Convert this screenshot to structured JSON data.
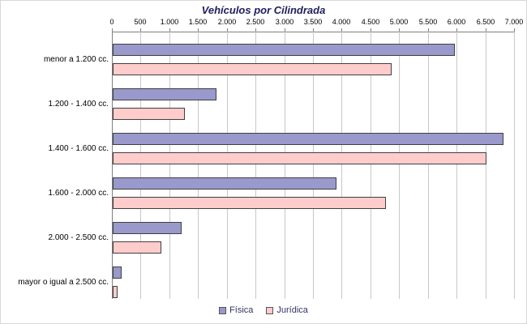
{
  "colors": {
    "title": "#202060",
    "axis": "#808080",
    "grid": "#c8c8c8",
    "barBorder": "#404040",
    "legendText": "#333366"
  },
  "chart_data": {
    "type": "bar",
    "orientation": "horizontal",
    "title": "Vehículos por Cilindrada",
    "categories": [
      "menor a 1.200 cc.",
      "1.200 - 1.400 cc.",
      "1.400 - 1.600 cc.",
      "1.600 - 2.000 cc.",
      "2.000 - 2.500 cc.",
      "mayor o igual a 2.500 cc."
    ],
    "series": [
      {
        "name": "Física",
        "color": "#9999CC",
        "values": [
          5950,
          1800,
          6800,
          3900,
          1200,
          150
        ]
      },
      {
        "name": "Jurídica",
        "color": "#FFCCCC",
        "values": [
          4850,
          1250,
          6500,
          4750,
          850,
          80
        ]
      }
    ],
    "xlim": [
      0,
      7000
    ],
    "x_ticks": [
      0,
      500,
      1000,
      1500,
      2000,
      2500,
      3000,
      3500,
      4000,
      4500,
      5000,
      5500,
      6000,
      6500,
      7000
    ],
    "x_tick_labels": [
      "0",
      "500",
      "1.000",
      "1.500",
      "2.000",
      "2.500",
      "3.000",
      "3.500",
      "4.000",
      "4.500",
      "5.000",
      "5.500",
      "6.000",
      "6.500",
      "7.000"
    ],
    "axis_position": "top",
    "grid": true,
    "legend_position": "bottom"
  }
}
